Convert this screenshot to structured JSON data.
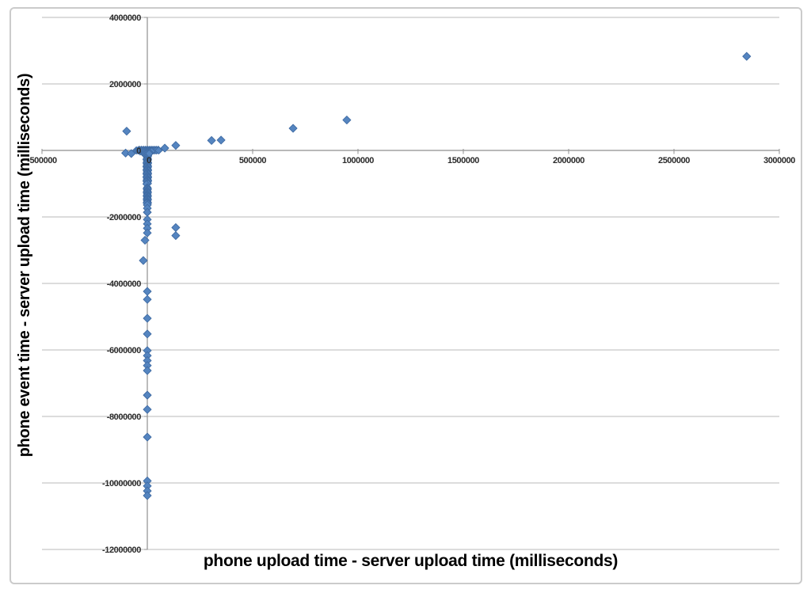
{
  "page": {
    "background": "#ffffff",
    "border_color": "#cbcbcb"
  },
  "chart_data": {
    "type": "scatter",
    "title": "",
    "xlabel": "phone upload time - server upload time (milliseconds)",
    "ylabel": "phone event time - server upload time (milliseconds)",
    "xlim": [
      -500000,
      3000000
    ],
    "ylim": [
      -12000000,
      4000000
    ],
    "grid": "horizontal-only",
    "legend": "none",
    "marker": {
      "shape": "diamond",
      "color": "#5585c0",
      "stroke": "#3f6ba3"
    },
    "x_ticks": [
      {
        "value": -500000,
        "label": "-500000"
      },
      {
        "value": 0,
        "label": "0"
      },
      {
        "value": 500000,
        "label": "500000"
      },
      {
        "value": 1000000,
        "label": "1000000"
      },
      {
        "value": 1500000,
        "label": "1500000"
      },
      {
        "value": 2000000,
        "label": "2000000"
      },
      {
        "value": 2500000,
        "label": "2500000"
      },
      {
        "value": 3000000,
        "label": "3000000"
      }
    ],
    "y_ticks": [
      {
        "value": 4000000,
        "label": "4000000"
      },
      {
        "value": 2000000,
        "label": "2000000"
      },
      {
        "value": 0,
        "label": "0"
      },
      {
        "value": -2000000,
        "label": "-2000000"
      },
      {
        "value": -4000000,
        "label": "-4000000"
      },
      {
        "value": -6000000,
        "label": "-6000000"
      },
      {
        "value": -8000000,
        "label": "-8000000"
      },
      {
        "value": -10000000,
        "label": "-10000000"
      },
      {
        "value": -12000000,
        "label": "-12000000"
      }
    ],
    "points": [
      [
        -98000,
        580000
      ],
      [
        -103000,
        -80000
      ],
      [
        -76000,
        -95000
      ],
      [
        83000,
        70000
      ],
      [
        135000,
        150000
      ],
      [
        305000,
        300000
      ],
      [
        350000,
        310000
      ],
      [
        692000,
        665000
      ],
      [
        947000,
        915000
      ],
      [
        2845000,
        2830000
      ],
      [
        0,
        -1640000
      ],
      [
        0,
        -1740000
      ],
      [
        0,
        -1860000
      ],
      [
        0,
        -2080000
      ],
      [
        0,
        -2210000
      ],
      [
        0,
        -2340000
      ],
      [
        0,
        -2480000
      ],
      [
        -11000,
        -2700000
      ],
      [
        135000,
        -2320000
      ],
      [
        135000,
        -2560000
      ],
      [
        -19000,
        -3310000
      ],
      [
        0,
        -4240000
      ],
      [
        0,
        -4480000
      ],
      [
        0,
        -5050000
      ],
      [
        0,
        -5520000
      ],
      [
        0,
        -6020000
      ],
      [
        0,
        -6170000
      ],
      [
        0,
        -6320000
      ],
      [
        0,
        -6470000
      ],
      [
        0,
        -6620000
      ],
      [
        0,
        -7360000
      ],
      [
        0,
        -7790000
      ],
      [
        0,
        -8620000
      ],
      [
        0,
        -9940000
      ],
      [
        0,
        -10090000
      ],
      [
        0,
        -10240000
      ],
      [
        0,
        -10380000
      ]
    ],
    "origin_cluster_rows": [
      {
        "y": 20000,
        "x_values": [
          -38000,
          -28000,
          -18000,
          -8000,
          2000,
          12000,
          22000,
          32000,
          42000,
          52000
        ]
      },
      {
        "y": 0,
        "x_values": [
          -52000,
          -44000,
          -36000,
          -28000,
          -20000,
          -12000,
          -4000,
          4000,
          12000,
          20000,
          28000,
          36000,
          44000,
          54000
        ]
      },
      {
        "y": -30000,
        "x_values": [
          -34000,
          -25000,
          -16000,
          -7000,
          2000,
          11000,
          20000
        ]
      },
      {
        "y": -60000,
        "x_values": [
          -22000,
          -14000,
          -6000,
          2000,
          10000
        ]
      },
      {
        "y": -95000,
        "x_values": [
          -12000,
          -5000,
          2000,
          9000
        ]
      }
    ],
    "dense_bands": [
      {
        "x": 0,
        "y_start": -110000,
        "y_end": -1020000,
        "y_step": -15000,
        "x_jitter": 5000
      },
      {
        "x": 0,
        "y_start": -1100000,
        "y_end": -1600000,
        "y_step": -15000,
        "x_jitter": 4000
      }
    ]
  }
}
